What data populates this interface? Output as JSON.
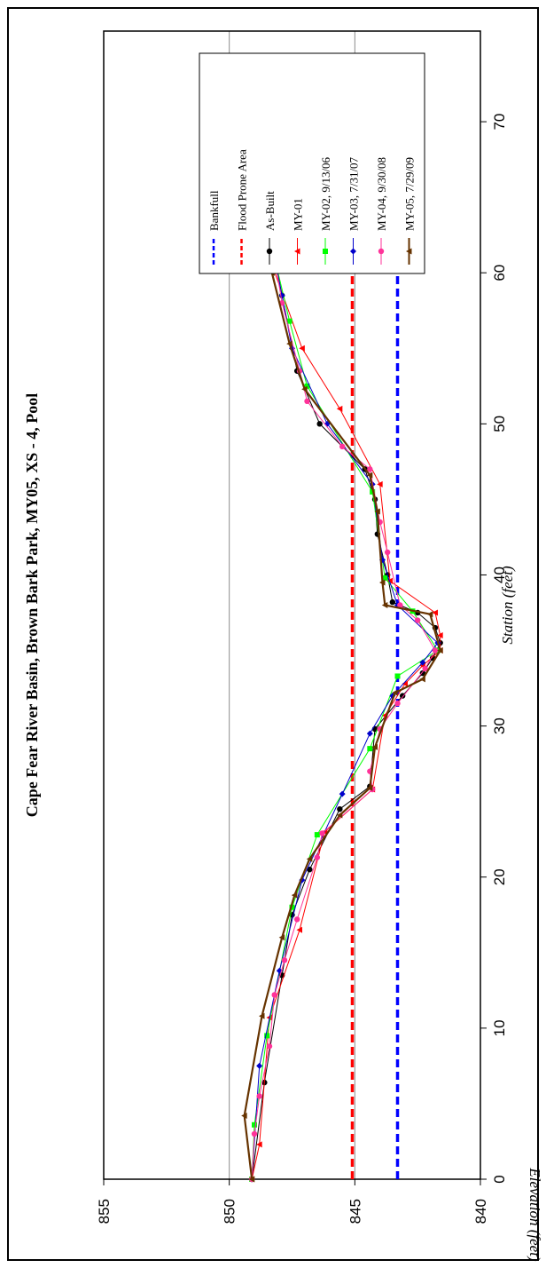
{
  "chart_data": {
    "type": "line",
    "title": "Cape Fear River Basin, Brown Bark Park, MY05, XS - 4, Pool",
    "xlabel": "Station (feet)",
    "ylabel": "Elevation (feet)",
    "xlim": [
      0,
      76
    ],
    "ylim": [
      840,
      855
    ],
    "xticks": [
      0,
      10,
      20,
      30,
      40,
      50,
      60,
      70
    ],
    "yticks": [
      840,
      845,
      850,
      855
    ],
    "grid": "horizontal",
    "legend_position": "top-right",
    "series": [
      {
        "name": "Bankfull",
        "color": "#0000ff",
        "style": "dashed",
        "marker": "none",
        "x": [
          0,
          60
        ],
        "y": [
          843.3,
          843.3
        ]
      },
      {
        "name": "Flood Prone Area",
        "color": "#ff0000",
        "style": "dashed",
        "marker": "none",
        "x": [
          0,
          60
        ],
        "y": [
          845.1,
          845.1
        ]
      },
      {
        "name": "As-Built",
        "color": "#000000",
        "style": "solid",
        "marker": "circle",
        "x": [
          0,
          6.4,
          13.5,
          17.5,
          20.5,
          24.5,
          26,
          29.8,
          32,
          33.5,
          34.5,
          35.5,
          36.5,
          37.5,
          38.2,
          40,
          42.7,
          45,
          47,
          50,
          53.5,
          58.5,
          61
        ],
        "y": [
          849.1,
          848.6,
          847.9,
          847.5,
          846.8,
          845.6,
          844.4,
          844.2,
          843.1,
          842.3,
          841.9,
          841.6,
          841.8,
          842.5,
          843.5,
          843.7,
          844.1,
          844.2,
          844.6,
          846.4,
          847.3,
          847.9,
          848.2
        ]
      },
      {
        "name": "MY-01",
        "color": "#ff0000",
        "style": "solid",
        "marker": "triangle",
        "x": [
          0,
          2.3,
          10.7,
          16.5,
          23,
          25.8,
          30.7,
          32.8,
          34,
          35,
          36,
          37.5,
          39.6,
          46,
          51,
          55,
          61
        ],
        "y": [
          849.1,
          848.8,
          848.4,
          847.2,
          846.2,
          844.3,
          843.8,
          843.0,
          842.3,
          841.6,
          841.6,
          841.8,
          843.6,
          844.0,
          845.6,
          847.1,
          848.4
        ]
      },
      {
        "name": "MY-02, 9/13/06",
        "color": "#00ff00",
        "style": "solid",
        "marker": "square",
        "x": [
          0,
          3.6,
          9.5,
          18,
          22.8,
          28.5,
          33.3,
          35,
          37.6,
          39.8,
          45.5,
          52.5,
          56.8,
          61
        ],
        "y": [
          849.1,
          849.0,
          848.5,
          847.5,
          846.5,
          844.4,
          843.3,
          841.7,
          842.7,
          843.8,
          844.3,
          846.9,
          847.6,
          848.2
        ]
      },
      {
        "name": "MY-03, 7/31/07",
        "color": "#0000cc",
        "style": "solid",
        "marker": "diamond",
        "x": [
          0,
          7.5,
          13.8,
          19.8,
          25.5,
          29.5,
          32,
          34.2,
          35.5,
          38,
          41,
          46,
          50,
          55,
          58.5,
          61
        ],
        "y": [
          849.1,
          848.8,
          848.0,
          847.1,
          845.5,
          844.4,
          843.5,
          842.3,
          841.7,
          843.3,
          843.9,
          844.3,
          846.1,
          847.5,
          847.9,
          848.2
        ]
      },
      {
        "name": "MY-04, 9/30/08",
        "color": "#ff3399",
        "style": "solid",
        "marker": "circle",
        "x": [
          0,
          3,
          5.5,
          8.8,
          12.2,
          14.5,
          17.2,
          21.3,
          22.9,
          25.8,
          27,
          29.8,
          31.5,
          33.8,
          35,
          37,
          38,
          41.5,
          43.5,
          47,
          48.5,
          51.5,
          53.5,
          58,
          61
        ],
        "y": [
          849.1,
          849.0,
          848.8,
          848.4,
          848.2,
          847.8,
          847.3,
          846.5,
          846.3,
          844.3,
          844.4,
          844.0,
          843.3,
          842.2,
          841.8,
          842.5,
          843.2,
          843.7,
          844.0,
          844.4,
          845.5,
          846.9,
          847.2,
          847.9,
          848.2
        ]
      },
      {
        "name": "MY-05, 7/29/09",
        "color": "#663300",
        "style": "solid",
        "marker": "triangle",
        "x": [
          0,
          4.2,
          10.8,
          16,
          18.8,
          21.2,
          24.1,
          25.9,
          28.6,
          32.2,
          33.1,
          35,
          37.4,
          38,
          39.5,
          44.2,
          46.6,
          52.3,
          55.3,
          60
        ],
        "y": [
          849.1,
          849.4,
          848.7,
          847.9,
          847.4,
          846.8,
          845.6,
          844.4,
          844.2,
          843.4,
          842.3,
          841.6,
          842.0,
          843.8,
          843.9,
          844.1,
          844.4,
          847.0,
          847.6,
          848.3
        ]
      }
    ]
  }
}
